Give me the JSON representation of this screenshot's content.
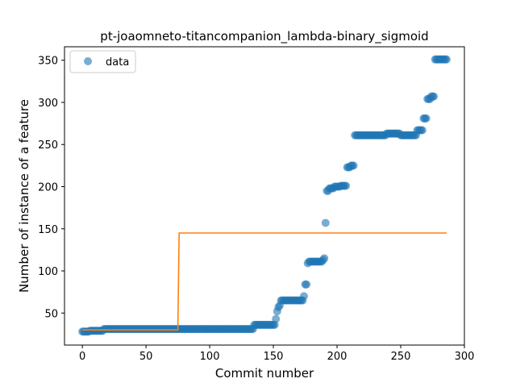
{
  "chart_data": {
    "type": "scatter",
    "title": "pt-joaomneto-titancompanion_lambda-binary_sigmoid",
    "xlabel": "Commit number",
    "ylabel": "Number of instance of a feature",
    "xlim": [
      -14,
      300
    ],
    "ylim": [
      12,
      366
    ],
    "xticks": [
      0,
      50,
      100,
      150,
      200,
      250,
      300
    ],
    "yticks": [
      50,
      100,
      150,
      200,
      250,
      300,
      350
    ],
    "grid": false,
    "legend": {
      "placement": "top-left",
      "entries": [
        "data"
      ]
    },
    "colors": {
      "data": "#1f77b4",
      "fit": "#ff7f0e"
    },
    "data_segments": [
      {
        "from": 0,
        "to": 5,
        "value": 28
      },
      {
        "from": 6,
        "to": 16,
        "value": 29
      },
      {
        "from": 17,
        "to": 134,
        "value": 31
      },
      {
        "from": 135,
        "to": 151,
        "value": 36
      },
      {
        "from": 152,
        "to": 152,
        "value": 43
      },
      {
        "from": 153,
        "to": 153,
        "value": 52
      },
      {
        "from": 154,
        "to": 154,
        "value": 57
      },
      {
        "from": 155,
        "to": 155,
        "value": 59
      },
      {
        "from": 156,
        "to": 173,
        "value": 65
      },
      {
        "from": 174,
        "to": 174,
        "value": 70
      },
      {
        "from": 175,
        "to": 176,
        "value": 84
      },
      {
        "from": 177,
        "to": 177,
        "value": 109
      },
      {
        "from": 178,
        "to": 188,
        "value": 111
      },
      {
        "from": 189,
        "to": 189,
        "value": 113
      },
      {
        "from": 190,
        "to": 190,
        "value": 115
      },
      {
        "from": 191,
        "to": 191,
        "value": 157
      },
      {
        "from": 192,
        "to": 193,
        "value": 195
      },
      {
        "from": 194,
        "to": 197,
        "value": 198
      },
      {
        "from": 198,
        "to": 202,
        "value": 200
      },
      {
        "from": 203,
        "to": 207,
        "value": 201
      },
      {
        "from": 208,
        "to": 210,
        "value": 223
      },
      {
        "from": 211,
        "to": 213,
        "value": 225
      },
      {
        "from": 214,
        "to": 238,
        "value": 261
      },
      {
        "from": 239,
        "to": 249,
        "value": 263
      },
      {
        "from": 250,
        "to": 262,
        "value": 261
      },
      {
        "from": 263,
        "to": 267,
        "value": 267
      },
      {
        "from": 268,
        "to": 270,
        "value": 281
      },
      {
        "from": 271,
        "to": 273,
        "value": 304
      },
      {
        "from": 274,
        "to": 276,
        "value": 307
      },
      {
        "from": 277,
        "to": 286,
        "value": 351
      }
    ],
    "fit_line": {
      "x": [
        0,
        75,
        76,
        286
      ],
      "y": [
        30,
        30,
        145,
        145
      ]
    }
  }
}
